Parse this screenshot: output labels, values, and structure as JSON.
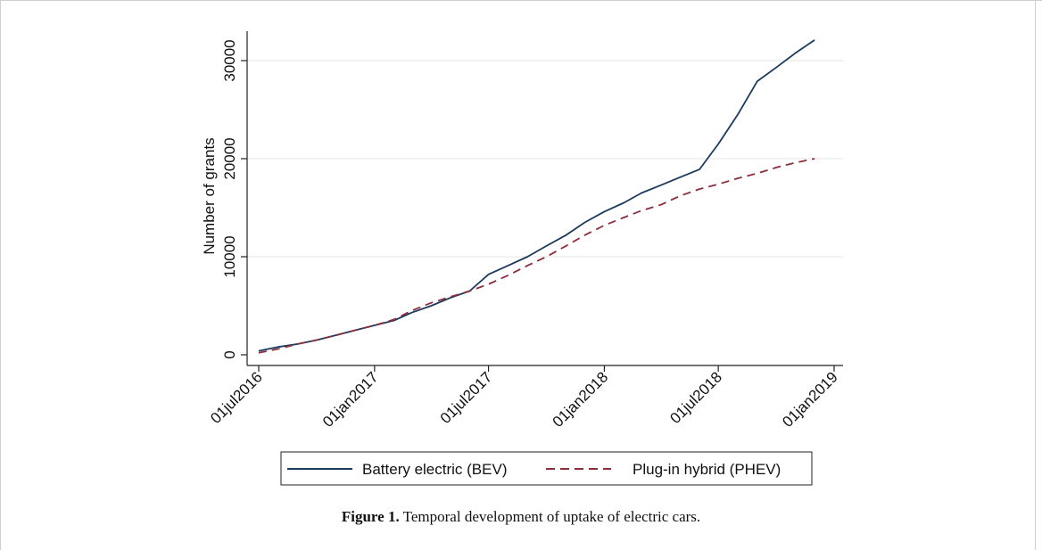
{
  "figure": {
    "caption_label": "Figure 1.",
    "caption_text": "Temporal development of uptake of electric cars."
  },
  "chart_data": {
    "type": "line",
    "title": "",
    "xlabel": "",
    "ylabel": "Number of grants",
    "ylim": [
      0,
      33000
    ],
    "y_ticks": [
      0,
      10000,
      20000,
      30000
    ],
    "x_ticks": [
      "01jul2016",
      "01jan2017",
      "01jul2017",
      "01jan2018",
      "01jul2018",
      "01jan2019"
    ],
    "grid": "horizontal",
    "legend_position": "bottom",
    "colors": {
      "bev": "#1b3a5c",
      "phev": "#8b2e3c",
      "grid": "#e6e6e6"
    },
    "series": [
      {
        "name": "Battery electric (BEV)",
        "style": "solid",
        "points": [
          [
            "2016-07-01",
            400
          ],
          [
            "2016-08-01",
            800
          ],
          [
            "2016-09-01",
            1100
          ],
          [
            "2016-10-01",
            1500
          ],
          [
            "2016-11-01",
            2000
          ],
          [
            "2016-12-01",
            2500
          ],
          [
            "2017-01-01",
            3000
          ],
          [
            "2017-02-01",
            3500
          ],
          [
            "2017-03-01",
            4300
          ],
          [
            "2017-04-01",
            5000
          ],
          [
            "2017-05-01",
            5800
          ],
          [
            "2017-06-01",
            6500
          ],
          [
            "2017-07-01",
            8200
          ],
          [
            "2017-08-01",
            9100
          ],
          [
            "2017-09-01",
            10000
          ],
          [
            "2017-10-01",
            11100
          ],
          [
            "2017-11-01",
            12200
          ],
          [
            "2017-12-01",
            13500
          ],
          [
            "2018-01-01",
            14600
          ],
          [
            "2018-02-01",
            15500
          ],
          [
            "2018-03-01",
            16500
          ],
          [
            "2018-04-01",
            17300
          ],
          [
            "2018-05-01",
            18100
          ],
          [
            "2018-06-01",
            18900
          ],
          [
            "2018-07-01",
            21500
          ],
          [
            "2018-08-01",
            24500
          ],
          [
            "2018-09-01",
            27900
          ],
          [
            "2018-10-01",
            29300
          ],
          [
            "2018-11-01",
            30800
          ],
          [
            "2018-12-01",
            32100
          ]
        ]
      },
      {
        "name": "Plug-in hybrid (PHEV)",
        "style": "dashed",
        "points": [
          [
            "2016-07-01",
            200
          ],
          [
            "2016-08-01",
            600
          ],
          [
            "2016-09-01",
            1100
          ],
          [
            "2016-10-01",
            1500
          ],
          [
            "2016-11-01",
            2000
          ],
          [
            "2016-12-01",
            2500
          ],
          [
            "2017-01-01",
            3000
          ],
          [
            "2017-02-01",
            3600
          ],
          [
            "2017-03-01",
            4500
          ],
          [
            "2017-04-01",
            5300
          ],
          [
            "2017-05-01",
            5900
          ],
          [
            "2017-06-01",
            6500
          ],
          [
            "2017-07-01",
            7200
          ],
          [
            "2017-08-01",
            8100
          ],
          [
            "2017-09-01",
            9100
          ],
          [
            "2017-10-01",
            10000
          ],
          [
            "2017-11-01",
            11100
          ],
          [
            "2017-12-01",
            12200
          ],
          [
            "2018-01-01",
            13200
          ],
          [
            "2018-02-01",
            14000
          ],
          [
            "2018-03-01",
            14700
          ],
          [
            "2018-04-01",
            15300
          ],
          [
            "2018-05-01",
            16200
          ],
          [
            "2018-06-01",
            16900
          ],
          [
            "2018-07-01",
            17400
          ],
          [
            "2018-08-01",
            18000
          ],
          [
            "2018-09-01",
            18500
          ],
          [
            "2018-10-01",
            19100
          ],
          [
            "2018-11-01",
            19600
          ],
          [
            "2018-12-01",
            20000
          ]
        ]
      }
    ]
  }
}
